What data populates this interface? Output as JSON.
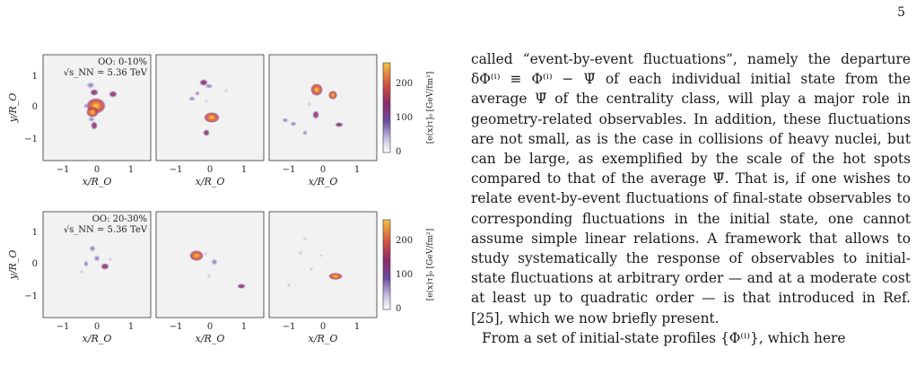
{
  "page": {
    "number": "5"
  },
  "figure": {
    "rows": [
      {
        "annotation_line1": "OO: 0-10%",
        "annotation_line2": "√s_NN = 5.36 TeV"
      },
      {
        "annotation_line1": "OO: 20-30%",
        "annotation_line2": "√s_NN = 5.36 TeV"
      }
    ],
    "xlabel": "x/R_O",
    "ylabel": "y/R_O",
    "xticks": [
      "−1",
      "0",
      "1"
    ],
    "yticks": [
      "1",
      "0",
      "−1"
    ],
    "colorbar": {
      "label": "[e(x)τ]₀ [GeV/fm²]",
      "ticks": [
        "200",
        "100",
        "0"
      ]
    }
  },
  "body_text": {
    "paragraph1": "called “event-by-event fluctuations”, namely the departure δΦ⁽ⁱ⁾ ≡ Φ⁽ⁱ⁾ − Ψ̄ of each individual initial state from the average Ψ̄ of the centrality class, will play a major role in geometry-related observables. In addition, these fluctuations are not small, as is the case in collisions of heavy nuclei, but can be large, as exemplified by the scale of the hot spots compared to that of the average Ψ̄. That is, if one wishes to relate event-by-event fluctuations of final-state observables to corresponding fluctuations in the initial state, one cannot assume simple linear relations. A framework that allows to study systematically the response of observables to initial-state fluctuations at arbitrary order — and at a moderate cost at least up to quadratic order — is that introduced in Ref. [25], which we now briefly present.",
    "paragraph2": "From a set of initial-state profiles {Φ⁽ⁱ⁾}, which here"
  },
  "colors": {
    "panel_background": "#f2f2f2",
    "hot": "#f5b83f",
    "mid": "#b52f5e",
    "cool": "#5a3c8c"
  }
}
